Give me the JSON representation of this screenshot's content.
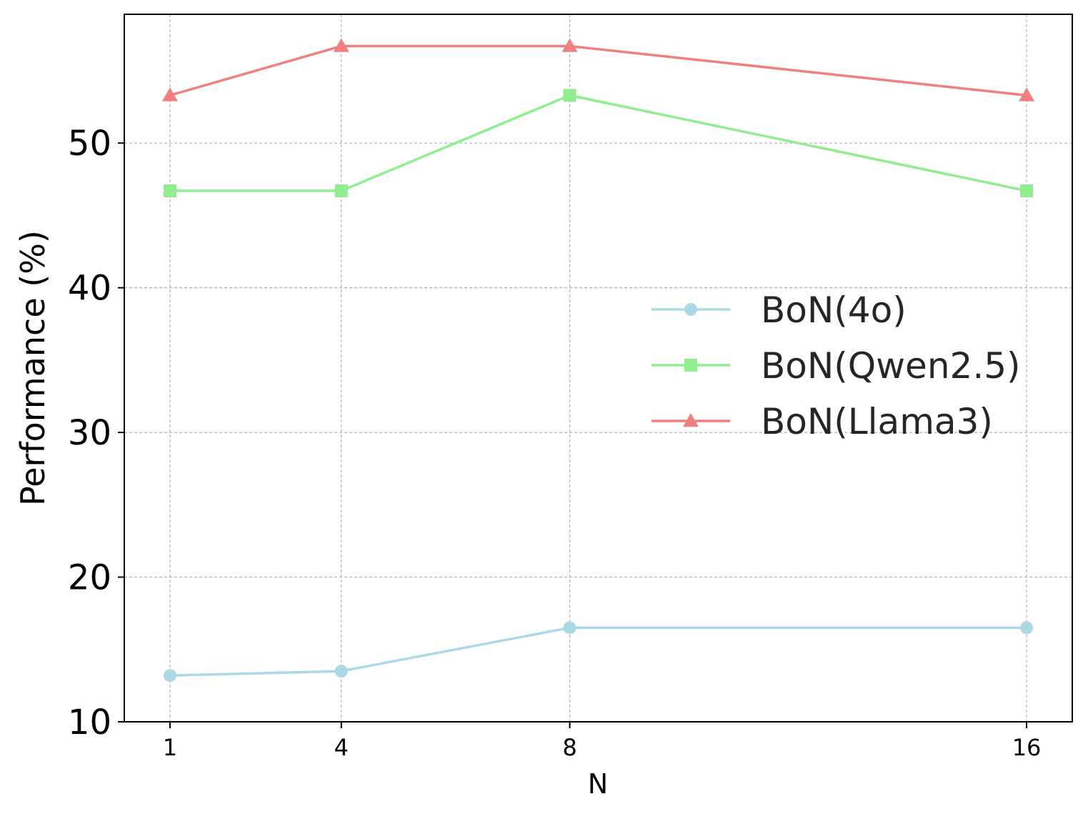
{
  "chart_data": {
    "type": "line",
    "title": "",
    "xlabel": "N",
    "ylabel": "Performance (%)",
    "x": [
      1,
      4,
      8,
      16
    ],
    "x_ticks": [
      "1",
      "4",
      "8",
      "16"
    ],
    "y_ticks": [
      "10",
      "20",
      "30",
      "40",
      "50"
    ],
    "ylim": [
      10,
      58.9
    ],
    "grid": true,
    "legend_position": "center-right",
    "series": [
      {
        "name": "BoN(4o)",
        "values": [
          13.2,
          13.5,
          16.5,
          16.5
        ],
        "color": "#add8e6",
        "marker": "circle"
      },
      {
        "name": "BoN(Qwen2.5)",
        "values": [
          46.7,
          46.7,
          53.3,
          46.7
        ],
        "color": "#90ee90",
        "marker": "square"
      },
      {
        "name": "BoN(Llama3)",
        "values": [
          53.3,
          56.7,
          56.7,
          53.3
        ],
        "color": "#f08080",
        "marker": "triangle"
      }
    ]
  }
}
